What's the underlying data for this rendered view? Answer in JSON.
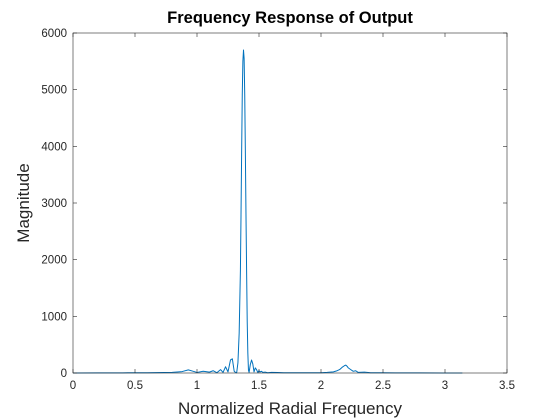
{
  "chart_data": {
    "type": "line",
    "title": "Frequency Response of Output",
    "xlabel": "Normalized Radial Frequency",
    "ylabel": "Magnitude",
    "xlim": [
      0,
      3.5
    ],
    "ylim": [
      0,
      6000
    ],
    "x_ticks": [
      0,
      0.5,
      1,
      1.5,
      2,
      2.5,
      3,
      3.5
    ],
    "x_tick_labels": [
      "0",
      "0.5",
      "1",
      "1.5",
      "2",
      "2.5",
      "3",
      "3.5"
    ],
    "y_ticks": [
      0,
      1000,
      2000,
      3000,
      4000,
      5000,
      6000
    ],
    "y_tick_labels": [
      "0",
      "1000",
      "2000",
      "3000",
      "4000",
      "5000",
      "6000"
    ],
    "grid": false,
    "legend": "none",
    "line_color": "#0072BD",
    "series": [
      {
        "x": [
          0,
          0.2,
          0.4,
          0.6,
          0.8,
          0.88,
          0.93,
          0.97,
          1.0,
          1.05,
          1.1,
          1.13,
          1.16,
          1.19,
          1.21,
          1.23,
          1.25,
          1.27,
          1.285,
          1.3,
          1.31,
          1.32,
          1.33,
          1.34,
          1.35,
          1.355,
          1.36,
          1.365,
          1.37,
          1.375,
          1.38,
          1.385,
          1.39,
          1.395,
          1.4,
          1.405,
          1.41,
          1.415,
          1.42,
          1.43,
          1.44,
          1.45,
          1.46,
          1.47,
          1.48,
          1.49,
          1.5,
          1.51,
          1.52,
          1.53,
          1.55,
          1.57,
          1.6,
          1.65,
          1.7,
          1.8,
          1.9,
          2.0,
          2.05,
          2.1,
          2.13,
          2.15,
          2.17,
          2.19,
          2.2,
          2.21,
          2.22,
          2.24,
          2.26,
          2.28,
          2.3,
          2.35,
          2.4,
          2.5,
          2.6,
          2.8,
          3.0,
          3.14
        ],
        "y": [
          0,
          2,
          3,
          5,
          10,
          25,
          55,
          30,
          10,
          30,
          15,
          40,
          5,
          60,
          10,
          110,
          20,
          230,
          250,
          30,
          10,
          5,
          180,
          700,
          1800,
          2800,
          3900,
          4900,
          5500,
          5700,
          5550,
          4900,
          3900,
          2800,
          1800,
          900,
          350,
          50,
          10,
          150,
          230,
          160,
          20,
          90,
          60,
          10,
          40,
          20,
          30,
          10,
          15,
          5,
          10,
          8,
          5,
          5,
          5,
          5,
          10,
          20,
          40,
          60,
          100,
          130,
          140,
          120,
          90,
          60,
          30,
          40,
          10,
          15,
          5,
          5,
          3,
          2,
          1,
          0
        ]
      }
    ]
  }
}
